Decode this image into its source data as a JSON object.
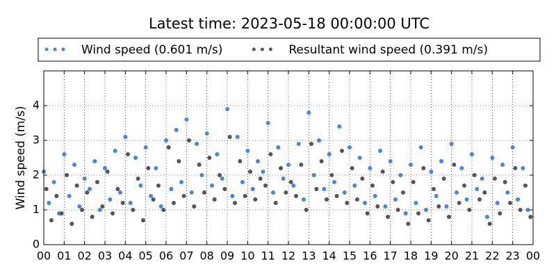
{
  "chart_data": {
    "type": "scatter",
    "title": "Latest time: 2023-05-18 00:00:00 UTC",
    "y_label": "Wind speed (m/s)",
    "xlim": [
      0,
      24
    ],
    "ylim": [
      0,
      5
    ],
    "xticks": [
      {
        "value": 0,
        "label": "00"
      },
      {
        "value": 1,
        "label": "01"
      },
      {
        "value": 2,
        "label": "02"
      },
      {
        "value": 3,
        "label": "03"
      },
      {
        "value": 4,
        "label": "04"
      },
      {
        "value": 5,
        "label": "05"
      },
      {
        "value": 6,
        "label": "06"
      },
      {
        "value": 7,
        "label": "07"
      },
      {
        "value": 8,
        "label": "08"
      },
      {
        "value": 9,
        "label": "09"
      },
      10,
      11,
      12,
      13,
      14,
      15,
      16,
      17,
      18,
      19,
      20,
      21,
      22,
      23,
      {
        "value": 24,
        "label": "00"
      }
    ],
    "yticks": [
      0,
      1,
      2,
      3,
      4
    ],
    "grid": true,
    "legend": "top",
    "series": [
      {
        "name": "Wind speed (0.601 m/s)",
        "color": "#3f86f5",
        "x": [
          0,
          0.25,
          0.5,
          0.75,
          1,
          1.25,
          1.5,
          1.75,
          2,
          2.25,
          2.5,
          2.75,
          3,
          3.25,
          3.5,
          3.75,
          4,
          4.25,
          4.5,
          4.75,
          5,
          5.25,
          5.5,
          5.75,
          6,
          6.25,
          6.5,
          6.75,
          7,
          7.25,
          7.5,
          7.75,
          8,
          8.25,
          8.5,
          8.75,
          9,
          9.25,
          9.5,
          9.75,
          10,
          10.25,
          10.5,
          10.75,
          11,
          11.25,
          11.5,
          11.75,
          12,
          12.25,
          12.5,
          12.75,
          13,
          13.25,
          13.5,
          13.75,
          14,
          14.25,
          14.5,
          14.75,
          15,
          15.25,
          15.5,
          15.75,
          16,
          16.25,
          16.5,
          16.75,
          17,
          17.25,
          17.5,
          17.75,
          18,
          18.25,
          18.5,
          18.75,
          19,
          19.25,
          19.5,
          19.75,
          20,
          20.25,
          20.5,
          20.75,
          21,
          21.25,
          21.5,
          21.75,
          22,
          22.25,
          22.5,
          22.75,
          23,
          23.25,
          23.5,
          23.75
        ],
        "values": [
          2.1,
          1.2,
          1.8,
          0.9,
          2.6,
          1.4,
          2.3,
          1.1,
          1.9,
          1.6,
          2.4,
          1.0,
          2.2,
          1.3,
          2.7,
          1.5,
          3.1,
          1.2,
          2.5,
          1.7,
          2.8,
          1.4,
          2.2,
          1.1,
          3.0,
          1.6,
          3.3,
          1.8,
          3.6,
          1.5,
          2.9,
          2.0,
          3.2,
          1.7,
          2.6,
          1.9,
          3.9,
          1.4,
          3.1,
          1.8,
          2.7,
          1.6,
          2.4,
          2.1,
          3.5,
          1.5,
          2.8,
          1.9,
          2.3,
          1.7,
          2.9,
          1.3,
          3.8,
          2.0,
          3.0,
          1.6,
          2.6,
          1.8,
          3.4,
          1.5,
          2.8,
          1.7,
          2.5,
          1.2,
          2.2,
          1.4,
          2.7,
          1.1,
          2.4,
          1.3,
          2.0,
          0.9,
          2.3,
          1.2,
          2.8,
          1.0,
          2.1,
          1.4,
          2.4,
          1.1,
          2.9,
          1.5,
          2.2,
          1.3,
          2.6,
          1.6,
          1.9,
          0.8,
          2.5,
          1.2,
          2.3,
          1.5,
          2.8,
          1.3,
          2.2,
          1.0
        ]
      },
      {
        "name": "Resultant wind speed (0.391 m/s)",
        "color": "#555555",
        "x": [
          0.125,
          0.375,
          0.625,
          0.875,
          1.125,
          1.375,
          1.625,
          1.875,
          2.125,
          2.375,
          2.625,
          2.875,
          3.125,
          3.375,
          3.625,
          3.875,
          4.125,
          4.375,
          4.625,
          4.875,
          5.125,
          5.375,
          5.625,
          5.875,
          6.125,
          6.375,
          6.625,
          6.875,
          7.125,
          7.375,
          7.625,
          7.875,
          8.125,
          8.375,
          8.625,
          8.875,
          9.125,
          9.375,
          9.625,
          9.875,
          10.125,
          10.375,
          10.625,
          10.875,
          11.125,
          11.375,
          11.625,
          11.875,
          12.125,
          12.375,
          12.625,
          12.875,
          13.125,
          13.375,
          13.625,
          13.875,
          14.125,
          14.375,
          14.625,
          14.875,
          15.125,
          15.375,
          15.625,
          15.875,
          16.125,
          16.375,
          16.625,
          16.875,
          17.125,
          17.375,
          17.625,
          17.875,
          18.125,
          18.375,
          18.625,
          18.875,
          19.125,
          19.375,
          19.625,
          19.875,
          20.125,
          20.375,
          20.625,
          20.875,
          21.125,
          21.375,
          21.625,
          21.875,
          22.125,
          22.375,
          22.625,
          22.875,
          23.125,
          23.375,
          23.625,
          23.875
        ],
        "values": [
          1.6,
          0.7,
          1.4,
          0.9,
          2.0,
          0.6,
          1.7,
          1.0,
          1.5,
          0.8,
          1.8,
          1.1,
          2.1,
          0.9,
          1.6,
          1.2,
          2.6,
          1.0,
          1.9,
          0.7,
          2.2,
          1.3,
          1.7,
          1.0,
          2.8,
          1.2,
          2.4,
          1.4,
          3.0,
          1.1,
          2.3,
          1.5,
          2.5,
          1.3,
          2.0,
          1.6,
          3.1,
          1.2,
          2.4,
          1.4,
          2.1,
          1.3,
          1.9,
          1.7,
          2.6,
          1.2,
          2.2,
          1.5,
          1.8,
          1.4,
          2.3,
          1.0,
          2.9,
          1.6,
          2.4,
          1.3,
          2.0,
          1.4,
          2.7,
          1.2,
          2.2,
          1.3,
          1.9,
          0.9,
          1.7,
          1.1,
          2.1,
          0.8,
          1.8,
          1.0,
          1.5,
          0.6,
          1.8,
          0.9,
          2.2,
          0.7,
          1.6,
          1.1,
          1.9,
          0.8,
          2.3,
          1.2,
          1.7,
          1.0,
          2.0,
          1.3,
          1.5,
          0.6,
          1.9,
          0.9,
          1.8,
          1.2,
          2.2,
          1.0,
          1.7,
          0.8
        ]
      }
    ]
  }
}
